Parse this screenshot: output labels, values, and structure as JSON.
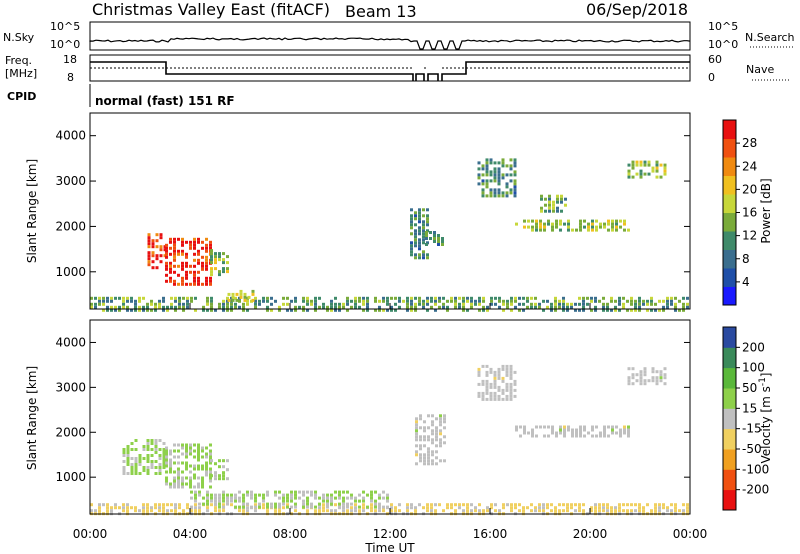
{
  "header": {
    "title": "Christmas Valley East (fitACF)",
    "beam": "Beam 13",
    "date": "06/Sep/2018"
  },
  "top_panel": {
    "left_label": "N.Sky",
    "right_label": "N.Search",
    "left_ticks": [
      "10^5",
      "10^0"
    ],
    "right_ticks": [
      "10^5",
      "10^0"
    ]
  },
  "freq_panel": {
    "left_label_1": "Freq.",
    "left_label_2": "[MHz]",
    "right_label": "Nave",
    "left_ticks": [
      "18",
      "8"
    ],
    "right_ticks": [
      "60",
      "0"
    ]
  },
  "cpid": {
    "label": "CPID",
    "value": "normal (fast) 151 RF"
  },
  "colors": {
    "power": [
      "#1a1aff",
      "#1f4fa8",
      "#3a6e8e",
      "#3f8a6a",
      "#7aab3a",
      "#c7d73a",
      "#f0c020",
      "#f08a10",
      "#f05010",
      "#e81010"
    ],
    "velocity": [
      "#e81010",
      "#f05010",
      "#f0a020",
      "#f0d060",
      "#c0c0c0",
      "#8ed04a",
      "#5ab83a",
      "#3a8a5a",
      "#2a4aa0"
    ]
  },
  "chart_data": [
    {
      "type": "heatmap",
      "name": "power-panel",
      "xlabel": "",
      "ylabel": "Slant Range [km]",
      "x_ticks": [
        "00:00",
        "04:00",
        "08:00",
        "12:00",
        "16:00",
        "20:00",
        "00:00"
      ],
      "y_ticks": [
        "1000",
        "2000",
        "3000",
        "4000"
      ],
      "ylim": [
        180,
        4500
      ],
      "xlim_hours": [
        0,
        24
      ],
      "colorbar": {
        "label": "Power [dB]",
        "ticks": [
          "28",
          "24",
          "20",
          "16",
          "12",
          "8",
          "4"
        ],
        "range": [
          0,
          30
        ]
      },
      "regions": [
        {
          "t0": 2.3,
          "t1": 3.0,
          "r0": 1100,
          "r1": 1850,
          "level": 27
        },
        {
          "t0": 3.0,
          "t1": 4.8,
          "r0": 750,
          "r1": 1750,
          "level": 28
        },
        {
          "t0": 4.8,
          "t1": 5.5,
          "r0": 950,
          "r1": 1500,
          "level": 14
        },
        {
          "t0": 0.0,
          "t1": 24.0,
          "r0": 180,
          "r1": 450,
          "level": 12
        },
        {
          "t0": 5.5,
          "t1": 6.5,
          "r0": 400,
          "r1": 600,
          "level": 16
        },
        {
          "t0": 12.8,
          "t1": 13.6,
          "r0": 1300,
          "r1": 2400,
          "level": 10
        },
        {
          "t0": 13.4,
          "t1": 14.2,
          "r0": 1600,
          "r1": 1900,
          "level": 10
        },
        {
          "t0": 15.5,
          "t1": 17.0,
          "r0": 2700,
          "r1": 3500,
          "level": 10
        },
        {
          "t0": 17.0,
          "t1": 21.5,
          "r0": 1900,
          "r1": 2150,
          "level": 15
        },
        {
          "t0": 18.0,
          "t1": 19.0,
          "r0": 2350,
          "r1": 2700,
          "level": 12
        },
        {
          "t0": 21.5,
          "t1": 23.0,
          "r0": 3100,
          "r1": 3450,
          "level": 14
        }
      ]
    },
    {
      "type": "heatmap",
      "name": "velocity-panel",
      "xlabel": "Time UT",
      "ylabel": "Slant Range [km]",
      "x_ticks": [
        "00:00",
        "04:00",
        "08:00",
        "12:00",
        "16:00",
        "20:00",
        "00:00"
      ],
      "y_ticks": [
        "1000",
        "2000",
        "3000",
        "4000"
      ],
      "ylim": [
        180,
        4500
      ],
      "xlim_hours": [
        0,
        24
      ],
      "colorbar": {
        "label": "Velocity [m s^-1]",
        "ticks": [
          "200",
          "100",
          "50",
          "15",
          "-15",
          "-50",
          "-100",
          "-200"
        ],
        "range": [
          -250,
          250
        ]
      },
      "regions": [
        {
          "t0": 1.3,
          "t1": 3.0,
          "r0": 1100,
          "r1": 1850,
          "level": 40
        },
        {
          "t0": 3.0,
          "t1": 4.8,
          "r0": 750,
          "r1": 1750,
          "level": 35
        },
        {
          "t0": 4.8,
          "t1": 5.5,
          "r0": 950,
          "r1": 1400,
          "level": 30
        },
        {
          "t0": 0.0,
          "t1": 24.0,
          "r0": 180,
          "r1": 420,
          "level": -40
        },
        {
          "t0": 4.0,
          "t1": 12.0,
          "r0": 300,
          "r1": 700,
          "level": 30
        },
        {
          "t0": 13.0,
          "t1": 14.2,
          "r0": 1300,
          "r1": 2400,
          "level": 0
        },
        {
          "t0": 15.5,
          "t1": 17.0,
          "r0": 2700,
          "r1": 3500,
          "level": 0
        },
        {
          "t0": 17.0,
          "t1": 21.5,
          "r0": 1900,
          "r1": 2150,
          "level": 0
        },
        {
          "t0": 21.5,
          "t1": 23.0,
          "r0": 3100,
          "r1": 3450,
          "level": 0
        }
      ]
    }
  ]
}
